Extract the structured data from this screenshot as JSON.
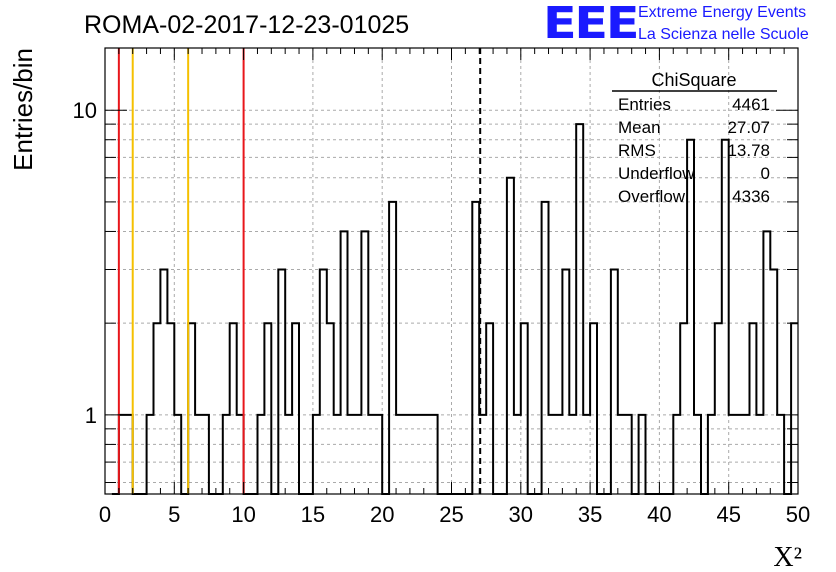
{
  "title": "ROMA-02-2017-12-23-01025",
  "logo": {
    "mark": "EEE",
    "line1": "Extreme Energy Events",
    "line2": "La Scienza nelle Scuole"
  },
  "colors": {
    "histogram": "#000000",
    "red_line": "#e8161b",
    "yellow_line": "#f5c000",
    "mean_line": "#000000",
    "grid": "#aaaaaa",
    "logo": "#1a1aff"
  },
  "chart_data": {
    "type": "bar",
    "ylabel": "Entries/bin",
    "xlabel": "X²",
    "xlim": [
      0,
      50
    ],
    "ylim": [
      0.55,
      16
    ],
    "yscale": "log",
    "xticks": [
      "0",
      "5",
      "10",
      "15",
      "20",
      "25",
      "30",
      "35",
      "40",
      "45",
      "50"
    ],
    "yticks": [
      {
        "value": 1,
        "label": "1"
      },
      {
        "value": 10,
        "label": "10"
      }
    ],
    "grid": true,
    "bin_width": 0.5,
    "bins": [
      [
        1.0,
        1
      ],
      [
        1.5,
        1
      ],
      [
        3.0,
        1
      ],
      [
        3.5,
        2
      ],
      [
        4.0,
        3
      ],
      [
        4.5,
        2
      ],
      [
        5.0,
        1
      ],
      [
        6.0,
        2
      ],
      [
        6.5,
        1
      ],
      [
        7.0,
        1
      ],
      [
        8.5,
        1
      ],
      [
        9.0,
        2
      ],
      [
        9.5,
        1
      ],
      [
        11.0,
        1
      ],
      [
        11.5,
        2
      ],
      [
        12.5,
        3
      ],
      [
        13.0,
        1
      ],
      [
        13.5,
        2
      ],
      [
        15.0,
        1
      ],
      [
        15.5,
        3
      ],
      [
        16.0,
        2
      ],
      [
        16.5,
        1
      ],
      [
        17.0,
        4
      ],
      [
        17.5,
        1
      ],
      [
        18.0,
        1
      ],
      [
        18.5,
        4
      ],
      [
        19.0,
        1
      ],
      [
        19.5,
        1
      ],
      [
        20.5,
        5
      ],
      [
        21.0,
        1
      ],
      [
        21.5,
        1
      ],
      [
        22.0,
        1
      ],
      [
        22.5,
        1
      ],
      [
        23.0,
        1
      ],
      [
        23.5,
        1
      ],
      [
        26.5,
        5
      ],
      [
        27.0,
        1
      ],
      [
        27.5,
        2
      ],
      [
        29.0,
        6
      ],
      [
        29.5,
        1
      ],
      [
        30.0,
        2
      ],
      [
        31.5,
        5
      ],
      [
        32.0,
        1
      ],
      [
        32.5,
        1
      ],
      [
        33.0,
        3
      ],
      [
        33.5,
        1
      ],
      [
        34.0,
        9
      ],
      [
        34.5,
        1
      ],
      [
        35.0,
        2
      ],
      [
        36.5,
        3
      ],
      [
        37.0,
        1
      ],
      [
        37.5,
        1
      ],
      [
        38.5,
        1
      ],
      [
        41.0,
        1
      ],
      [
        41.5,
        2
      ],
      [
        42.0,
        8
      ],
      [
        42.5,
        1
      ],
      [
        43.5,
        1
      ],
      [
        44.0,
        2
      ],
      [
        44.5,
        8
      ],
      [
        45.0,
        1
      ],
      [
        45.5,
        1
      ],
      [
        46.0,
        1
      ],
      [
        46.5,
        2
      ],
      [
        47.0,
        1
      ],
      [
        47.5,
        4
      ],
      [
        48.0,
        3
      ],
      [
        48.5,
        1
      ],
      [
        49.5,
        2
      ]
    ],
    "vertical_lines": [
      {
        "x": 1,
        "color": "red"
      },
      {
        "x": 10,
        "color": "red"
      },
      {
        "x": 2,
        "color": "yellow"
      },
      {
        "x": 6,
        "color": "yellow"
      },
      {
        "x": 27.07,
        "color": "black",
        "dashed": true
      }
    ],
    "stats": {
      "name": "ChiSquare",
      "rows": [
        {
          "label": "Entries",
          "value": "4461"
        },
        {
          "label": "Mean",
          "value": "27.07"
        },
        {
          "label": "RMS",
          "value": "13.78"
        },
        {
          "label": "Underflow",
          "value": "0"
        },
        {
          "label": "Overflow",
          "value": "4336"
        }
      ]
    }
  }
}
